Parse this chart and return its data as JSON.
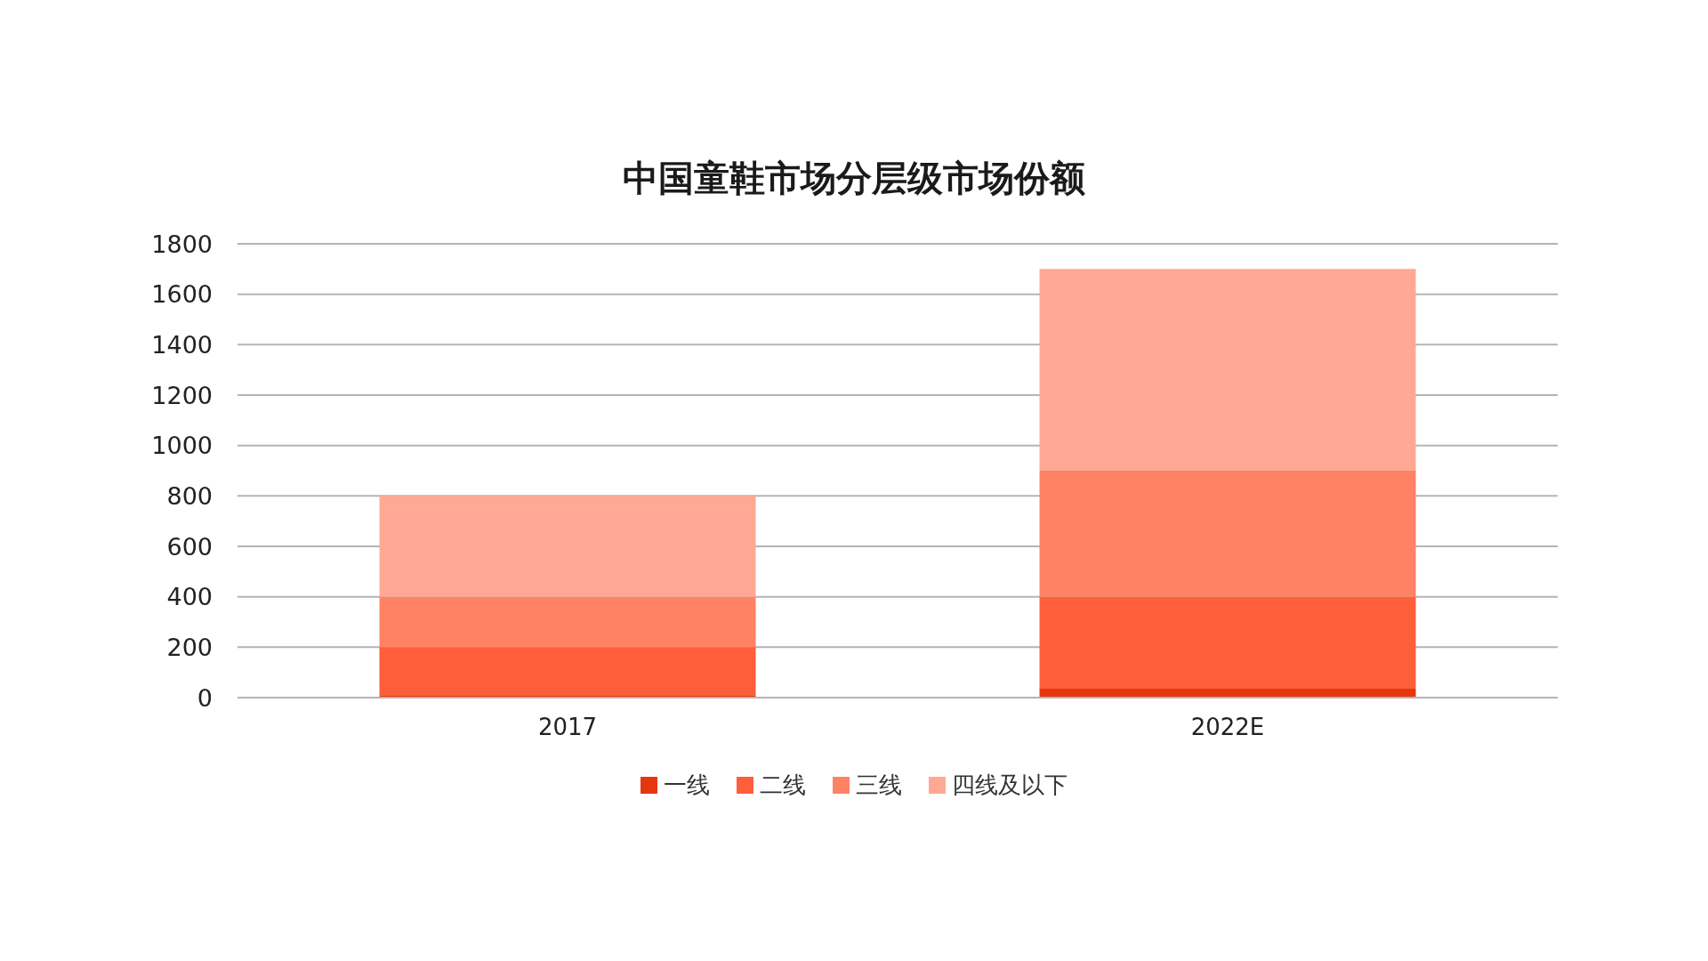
{
  "chart_data": {
    "type": "bar",
    "title": "中国童鞋市场分层级市场份额",
    "categories": [
      "2017",
      "2022E"
    ],
    "series": [
      {
        "name": "一线",
        "color": "#e5370e",
        "values": [
          10,
          35
        ]
      },
      {
        "name": "二线",
        "color": "#ff5e3a",
        "values": [
          190,
          365
        ]
      },
      {
        "name": "三线",
        "color": "#ff8264",
        "values": [
          200,
          500
        ]
      },
      {
        "name": "四线及以下",
        "color": "#ffa893",
        "values": [
          400,
          800
        ]
      }
    ],
    "stacked": true,
    "ylim": [
      0,
      1800
    ],
    "yticks": [
      0,
      200,
      400,
      600,
      800,
      1000,
      1200,
      1400,
      1600,
      1800
    ],
    "grid": "y",
    "legend": "bottom"
  }
}
